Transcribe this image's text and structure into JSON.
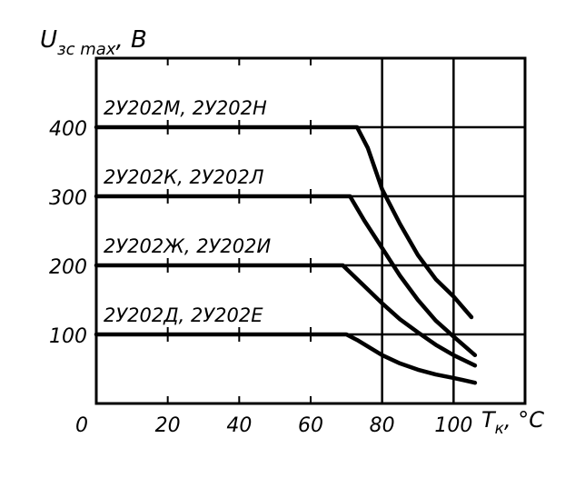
{
  "chart_data": {
    "type": "line",
    "ylabel": {
      "main": "U",
      "sub": "зс max",
      "unit": ", В"
    },
    "xlabel": {
      "main": "T",
      "sub": "к",
      "unit": ", °C"
    },
    "xlim": [
      0,
      120
    ],
    "ylim": [
      0,
      500
    ],
    "x_ticks": [
      0,
      20,
      40,
      60,
      80,
      100
    ],
    "x_tick_labels": [
      "0",
      "20",
      "40",
      "60",
      "80",
      "100"
    ],
    "y_ticks": [
      100,
      200,
      300,
      400
    ],
    "y_tick_labels": [
      "100",
      "200",
      "300",
      "400"
    ],
    "grid": "horizontal lines at y ticks; vertical lines at x=80 and x=100",
    "color": "#000000",
    "series": [
      {
        "name": "2У202М, 2У202Н",
        "points": [
          [
            0,
            400
          ],
          [
            73,
            400
          ],
          [
            76,
            370
          ],
          [
            80,
            310
          ],
          [
            85,
            260
          ],
          [
            90,
            215
          ],
          [
            95,
            180
          ],
          [
            100,
            155
          ],
          [
            105,
            125
          ]
        ]
      },
      {
        "name": "2У202К, 2У202Л",
        "points": [
          [
            0,
            300
          ],
          [
            71,
            300
          ],
          [
            75,
            265
          ],
          [
            80,
            225
          ],
          [
            85,
            185
          ],
          [
            90,
            150
          ],
          [
            95,
            120
          ],
          [
            100,
            97
          ],
          [
            106,
            70
          ]
        ]
      },
      {
        "name": "2У202Ж, 2У202И",
        "points": [
          [
            0,
            200
          ],
          [
            69,
            200
          ],
          [
            75,
            170
          ],
          [
            80,
            145
          ],
          [
            85,
            122
          ],
          [
            90,
            103
          ],
          [
            95,
            85
          ],
          [
            100,
            70
          ],
          [
            106,
            55
          ]
        ]
      },
      {
        "name": "2У202Д, 2У202Е",
        "points": [
          [
            0,
            100
          ],
          [
            70,
            100
          ],
          [
            73,
            92
          ],
          [
            80,
            70
          ],
          [
            85,
            58
          ],
          [
            90,
            49
          ],
          [
            95,
            42
          ],
          [
            100,
            37
          ],
          [
            106,
            30
          ]
        ]
      }
    ]
  }
}
